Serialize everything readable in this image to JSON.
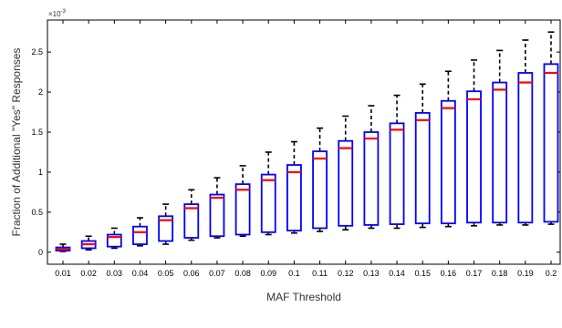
{
  "chart_data": {
    "type": "box",
    "xlabel": "MAF Threshold",
    "ylabel": "Fraction of Additional \"Yes\" Responses",
    "y_exponent_label": "×10",
    "y_exponent_sup": "-3",
    "ylim": [
      -0.00015,
      0.0029
    ],
    "yticks": [
      0,
      0.0005,
      0.001,
      0.0015,
      0.002,
      0.0025
    ],
    "ytick_labels": [
      "0",
      "0.5",
      "1",
      "1.5",
      "2",
      "2.5"
    ],
    "categories": [
      "0.01",
      "0.02",
      "0.03",
      "0.04",
      "0.05",
      "0.06",
      "0.07",
      "0.08",
      "0.09",
      "0.1",
      "0.11",
      "0.12",
      "0.13",
      "0.14",
      "0.15",
      "0.16",
      "0.17",
      "0.18",
      "0.19",
      "0.2"
    ],
    "boxes": [
      {
        "whisker_low": 1e-05,
        "q1": 2e-05,
        "median": 4e-05,
        "q3": 6e-05,
        "whisker_high": 0.0001
      },
      {
        "whisker_low": 3e-05,
        "q1": 5e-05,
        "median": 0.0001,
        "q3": 0.00014,
        "whisker_high": 0.0002
      },
      {
        "whisker_low": 5e-05,
        "q1": 7e-05,
        "median": 0.00019,
        "q3": 0.00022,
        "whisker_high": 0.0003
      },
      {
        "whisker_low": 8e-05,
        "q1": 0.0001,
        "median": 0.00025,
        "q3": 0.00032,
        "whisker_high": 0.00043
      },
      {
        "whisker_low": 0.0001,
        "q1": 0.00014,
        "median": 0.0004,
        "q3": 0.00045,
        "whisker_high": 0.0006
      },
      {
        "whisker_low": 0.00015,
        "q1": 0.00018,
        "median": 0.00055,
        "q3": 0.0006,
        "whisker_high": 0.00078
      },
      {
        "whisker_low": 0.00018,
        "q1": 0.0002,
        "median": 0.00068,
        "q3": 0.00072,
        "whisker_high": 0.00093
      },
      {
        "whisker_low": 0.0002,
        "q1": 0.00022,
        "median": 0.00078,
        "q3": 0.00085,
        "whisker_high": 0.00108
      },
      {
        "whisker_low": 0.00022,
        "q1": 0.00025,
        "median": 0.0009,
        "q3": 0.00097,
        "whisker_high": 0.00125
      },
      {
        "whisker_low": 0.00024,
        "q1": 0.00027,
        "median": 0.001,
        "q3": 0.00109,
        "whisker_high": 0.00138
      },
      {
        "whisker_low": 0.00026,
        "q1": 0.0003,
        "median": 0.00117,
        "q3": 0.00126,
        "whisker_high": 0.00155
      },
      {
        "whisker_low": 0.00028,
        "q1": 0.00033,
        "median": 0.0013,
        "q3": 0.00139,
        "whisker_high": 0.0017
      },
      {
        "whisker_low": 0.0003,
        "q1": 0.00034,
        "median": 0.00142,
        "q3": 0.0015,
        "whisker_high": 0.00183
      },
      {
        "whisker_low": 0.0003,
        "q1": 0.00035,
        "median": 0.00153,
        "q3": 0.00161,
        "whisker_high": 0.00196
      },
      {
        "whisker_low": 0.00031,
        "q1": 0.00036,
        "median": 0.00165,
        "q3": 0.00174,
        "whisker_high": 0.0021
      },
      {
        "whisker_low": 0.00032,
        "q1": 0.00036,
        "median": 0.0018,
        "q3": 0.00189,
        "whisker_high": 0.00226
      },
      {
        "whisker_low": 0.00033,
        "q1": 0.00037,
        "median": 0.00191,
        "q3": 0.00201,
        "whisker_high": 0.0024
      },
      {
        "whisker_low": 0.00034,
        "q1": 0.00037,
        "median": 0.00203,
        "q3": 0.00212,
        "whisker_high": 0.00252
      },
      {
        "whisker_low": 0.00034,
        "q1": 0.00037,
        "median": 0.00212,
        "q3": 0.00224,
        "whisker_high": 0.00265
      },
      {
        "whisker_low": 0.00035,
        "q1": 0.00038,
        "median": 0.00224,
        "q3": 0.00235,
        "whisker_high": 0.00275
      }
    ],
    "box_color": "#0000ff",
    "median_color": "#ff0000",
    "whisker_color": "#000000",
    "grid": false
  }
}
